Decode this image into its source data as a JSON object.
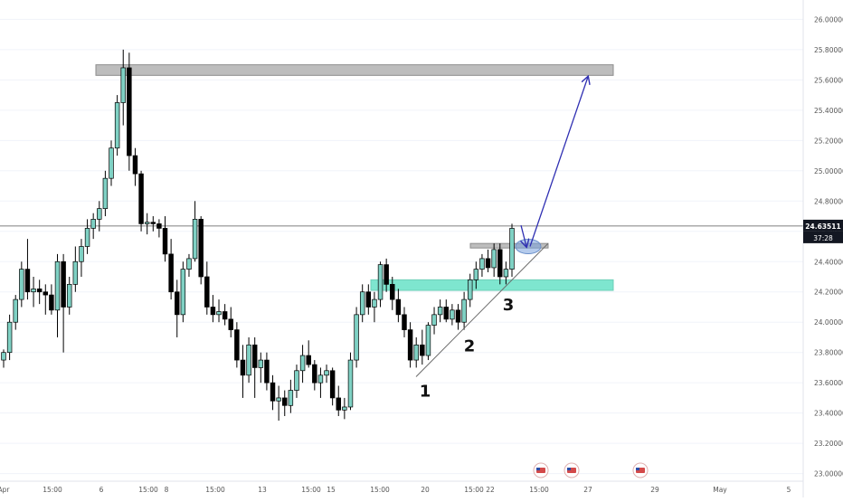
{
  "colors": {
    "background": "#ffffff",
    "grid": "#f0f3fa",
    "up_candle": "#7fd1c4",
    "down_candle": "#000000",
    "supply_zone": "#bdbdbd",
    "demand_zone": "#7ee6cf",
    "arrow": "#2f2fb2",
    "trendline": "#6d6d6d",
    "price_label_bg": "#131722",
    "axis_text": "#555555"
  },
  "chart_data": {
    "type": "candlestick",
    "title": "",
    "ylim": [
      22.95,
      26.08
    ],
    "grid": true,
    "current_price": "24.63511",
    "countdown": "37:28",
    "y_ticks": [
      "26.00000",
      "25.80000",
      "25.60000",
      "25.40000",
      "25.20000",
      "25.00000",
      "24.80000",
      "24.60000",
      "24.40000",
      "24.20000",
      "24.00000",
      "23.80000",
      "23.60000",
      "23.40000",
      "23.20000",
      "23.00000"
    ],
    "x_ticks": [
      "Apr",
      "15:00",
      "6",
      "15:00",
      "8",
      "15:00",
      "13",
      "15:00",
      "15",
      "15:00",
      "20",
      "15:00",
      "22",
      "15:00",
      "27",
      "29",
      "May",
      "5"
    ],
    "candles": [
      [
        23.75,
        23.82,
        23.7,
        23.8
      ],
      [
        23.8,
        24.05,
        23.75,
        24.0
      ],
      [
        24.0,
        24.18,
        23.95,
        24.15
      ],
      [
        24.15,
        24.4,
        24.1,
        24.35
      ],
      [
        24.35,
        24.55,
        24.15,
        24.2
      ],
      [
        24.2,
        24.3,
        24.1,
        24.22
      ],
      [
        24.22,
        24.28,
        24.12,
        24.2
      ],
      [
        24.2,
        24.25,
        24.05,
        24.18
      ],
      [
        24.18,
        24.25,
        24.05,
        24.08
      ],
      [
        24.08,
        24.45,
        23.9,
        24.4
      ],
      [
        24.4,
        24.45,
        23.8,
        24.1
      ],
      [
        24.1,
        24.3,
        24.05,
        24.25
      ],
      [
        24.25,
        24.5,
        24.2,
        24.4
      ],
      [
        24.4,
        24.55,
        24.3,
        24.5
      ],
      [
        24.5,
        24.68,
        24.45,
        24.62
      ],
      [
        24.62,
        24.72,
        24.55,
        24.68
      ],
      [
        24.68,
        24.8,
        24.6,
        24.75
      ],
      [
        24.75,
        25.0,
        24.7,
        24.95
      ],
      [
        24.95,
        25.2,
        24.9,
        25.15
      ],
      [
        25.15,
        25.5,
        25.1,
        25.45
      ],
      [
        25.45,
        25.8,
        25.3,
        25.68
      ],
      [
        25.68,
        25.78,
        25.0,
        25.1
      ],
      [
        25.1,
        25.15,
        24.9,
        24.98
      ],
      [
        24.98,
        25.0,
        24.6,
        24.65
      ],
      [
        24.65,
        24.72,
        24.58,
        24.66
      ],
      [
        24.66,
        24.7,
        24.6,
        24.65
      ],
      [
        24.65,
        24.68,
        24.56,
        24.62
      ],
      [
        24.62,
        24.7,
        24.4,
        24.45
      ],
      [
        24.45,
        24.55,
        24.15,
        24.2
      ],
      [
        24.2,
        24.28,
        23.9,
        24.05
      ],
      [
        24.05,
        24.4,
        24.0,
        24.35
      ],
      [
        24.35,
        24.45,
        24.3,
        24.42
      ],
      [
        24.42,
        24.8,
        24.4,
        24.68
      ],
      [
        24.68,
        24.7,
        24.25,
        24.3
      ],
      [
        24.3,
        24.4,
        24.05,
        24.1
      ],
      [
        24.1,
        24.18,
        24.0,
        24.05
      ],
      [
        24.05,
        24.15,
        24.0,
        24.07
      ],
      [
        24.07,
        24.12,
        23.98,
        24.02
      ],
      [
        24.02,
        24.1,
        23.9,
        23.95
      ],
      [
        23.95,
        24.0,
        23.7,
        23.75
      ],
      [
        23.75,
        23.85,
        23.5,
        23.65
      ],
      [
        23.65,
        23.9,
        23.6,
        23.85
      ],
      [
        23.85,
        23.9,
        23.5,
        23.7
      ],
      [
        23.7,
        23.8,
        23.6,
        23.75
      ],
      [
        23.75,
        23.8,
        23.55,
        23.6
      ],
      [
        23.6,
        23.65,
        23.42,
        23.48
      ],
      [
        23.48,
        23.58,
        23.35,
        23.5
      ],
      [
        23.5,
        23.55,
        23.38,
        23.45
      ],
      [
        23.45,
        23.62,
        23.4,
        23.55
      ],
      [
        23.55,
        23.72,
        23.5,
        23.68
      ],
      [
        23.68,
        23.85,
        23.6,
        23.78
      ],
      [
        23.78,
        23.88,
        23.7,
        23.72
      ],
      [
        23.72,
        23.75,
        23.55,
        23.6
      ],
      [
        23.6,
        23.7,
        23.5,
        23.65
      ],
      [
        23.65,
        23.72,
        23.6,
        23.68
      ],
      [
        23.68,
        23.7,
        23.45,
        23.5
      ],
      [
        23.5,
        23.58,
        23.38,
        23.42
      ],
      [
        23.42,
        23.5,
        23.36,
        23.44
      ],
      [
        23.44,
        23.8,
        23.42,
        23.75
      ],
      [
        23.75,
        24.1,
        23.7,
        24.05
      ],
      [
        24.05,
        24.25,
        24.0,
        24.2
      ],
      [
        24.2,
        24.25,
        24.05,
        24.1
      ],
      [
        24.1,
        24.2,
        24.0,
        24.15
      ],
      [
        24.15,
        24.4,
        24.1,
        24.38
      ],
      [
        24.38,
        24.42,
        24.2,
        24.25
      ],
      [
        24.25,
        24.3,
        24.08,
        24.15
      ],
      [
        24.15,
        24.22,
        24.0,
        24.05
      ],
      [
        24.05,
        24.1,
        23.9,
        23.95
      ],
      [
        23.95,
        24.0,
        23.7,
        23.75
      ],
      [
        23.75,
        23.9,
        23.7,
        23.85
      ],
      [
        23.85,
        23.95,
        23.72,
        23.78
      ],
      [
        23.78,
        24.0,
        23.75,
        23.98
      ],
      [
        23.98,
        24.1,
        23.92,
        24.05
      ],
      [
        24.05,
        24.15,
        24.0,
        24.1
      ],
      [
        24.1,
        24.15,
        24.0,
        24.02
      ],
      [
        24.02,
        24.12,
        23.98,
        24.08
      ],
      [
        24.08,
        24.12,
        23.95,
        24.0
      ],
      [
        24.0,
        24.2,
        23.95,
        24.15
      ],
      [
        24.15,
        24.32,
        24.1,
        24.28
      ],
      [
        24.28,
        24.4,
        24.22,
        24.35
      ],
      [
        24.35,
        24.45,
        24.3,
        24.42
      ],
      [
        24.42,
        24.48,
        24.33,
        24.36
      ],
      [
        24.36,
        24.52,
        24.3,
        24.48
      ],
      [
        24.48,
        24.52,
        24.25,
        24.3
      ],
      [
        24.3,
        24.4,
        24.25,
        24.35
      ],
      [
        24.35,
        24.65,
        24.3,
        24.62
      ]
    ]
  },
  "annotations": {
    "wave_labels": [
      "1",
      "2",
      "3"
    ]
  }
}
